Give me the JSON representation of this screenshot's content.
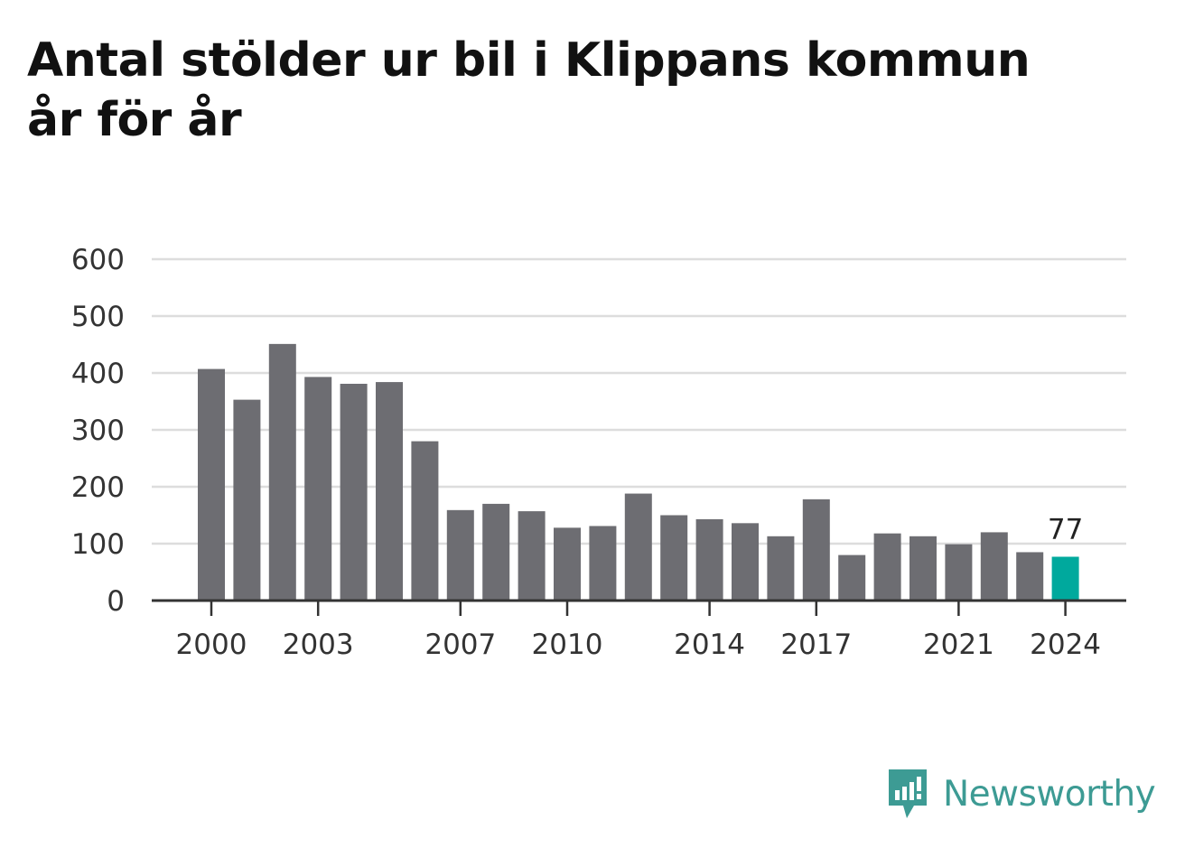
{
  "title_line1": "Antal stölder ur bil i Klippans kommun",
  "title_line2": "år för år",
  "brand": "Newsworthy",
  "colors": {
    "bar": "#6d6d72",
    "highlight": "#00a99d",
    "brand": "#3d9b94"
  },
  "chart_data": {
    "type": "bar",
    "x": [
      2000,
      2001,
      2002,
      2003,
      2004,
      2005,
      2006,
      2007,
      2008,
      2009,
      2010,
      2011,
      2012,
      2013,
      2014,
      2015,
      2016,
      2017,
      2018,
      2019,
      2020,
      2021,
      2022,
      2023,
      2024
    ],
    "values": [
      407,
      353,
      451,
      393,
      381,
      384,
      280,
      159,
      170,
      157,
      128,
      131,
      188,
      150,
      143,
      136,
      113,
      178,
      80,
      118,
      113,
      99,
      120,
      85,
      77
    ],
    "ylim": [
      0,
      600
    ],
    "yticks": [
      0,
      100,
      200,
      300,
      400,
      500,
      600
    ],
    "xtick_labels": [
      "2000",
      "2003",
      "2007",
      "2010",
      "2014",
      "2017",
      "2021",
      "2024"
    ],
    "highlight": {
      "x": 2024,
      "value": 77,
      "label": "77"
    },
    "grid": true
  }
}
